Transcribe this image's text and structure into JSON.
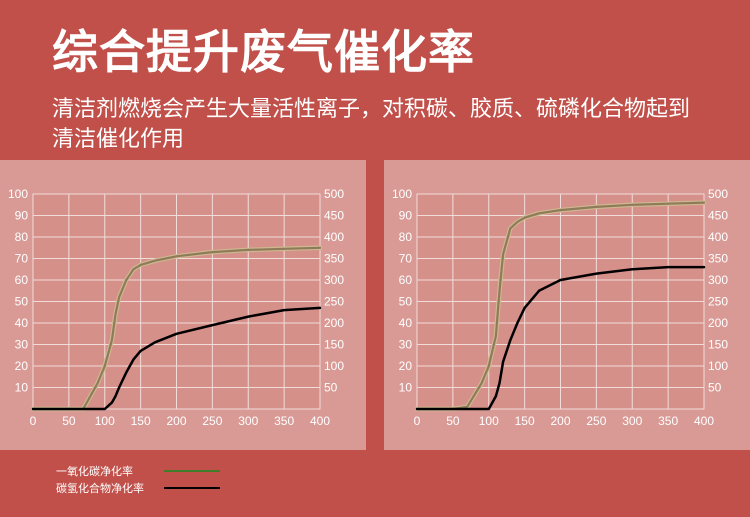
{
  "header": {
    "title": "综合提升废气催化率",
    "subtitle": "清洁剂燃烧会产生大量活性离子，对积碳、胶质、硫磷化合物起到清洁催化作用"
  },
  "colors": {
    "background": "#c1504a",
    "panel": "#d99a95",
    "co_line": "#8f7a5a",
    "hc_line": "#000000",
    "legend_green": "#3f7d2a"
  },
  "legend": [
    {
      "label": "一氧化碳净化率",
      "color": "#3f7d2a"
    },
    {
      "label": "碳氢化合物净化率",
      "color": "#000000"
    }
  ],
  "chart_data": [
    {
      "type": "line",
      "x": [
        0,
        50,
        70,
        90,
        100,
        110,
        115,
        120,
        130,
        140,
        150,
        170,
        200,
        250,
        300,
        350,
        400
      ],
      "xlim": [
        0,
        400
      ],
      "xticks": [
        0,
        50,
        100,
        150,
        200,
        250,
        300,
        350,
        400
      ],
      "ylim": [
        0,
        100
      ],
      "yticks_left": [
        10,
        20,
        30,
        40,
        50,
        60,
        70,
        80,
        90,
        100
      ],
      "ylim_right": [
        0,
        500
      ],
      "yticks_right": [
        50,
        100,
        150,
        200,
        250,
        300,
        350,
        400,
        450,
        500
      ],
      "grid": true,
      "series": [
        {
          "name": "一氧化碳净化率",
          "values": [
            0,
            0,
            0,
            12,
            20,
            32,
            44,
            52,
            60,
            65,
            67,
            69,
            71,
            73,
            74,
            74.5,
            75
          ]
        },
        {
          "name": "碳氢化合物净化率",
          "values": [
            0,
            0,
            0,
            0,
            0,
            3,
            6,
            10,
            17,
            23,
            27,
            31,
            35,
            39,
            43,
            46,
            47
          ]
        }
      ]
    },
    {
      "type": "line",
      "x": [
        0,
        50,
        70,
        90,
        100,
        110,
        115,
        120,
        130,
        140,
        150,
        170,
        200,
        250,
        300,
        350,
        400
      ],
      "xlim": [
        0,
        400
      ],
      "xticks": [
        0,
        50,
        100,
        150,
        200,
        250,
        300,
        350,
        400
      ],
      "ylim": [
        0,
        100
      ],
      "yticks_left": [
        10,
        20,
        30,
        40,
        50,
        60,
        70,
        80,
        90,
        100
      ],
      "ylim_right": [
        0,
        500
      ],
      "yticks_right": [
        50,
        100,
        150,
        200,
        250,
        300,
        350,
        400,
        450,
        500
      ],
      "grid": true,
      "series": [
        {
          "name": "一氧化碳净化率",
          "values": [
            0,
            0,
            1,
            12,
            20,
            34,
            55,
            72,
            84,
            87,
            89,
            91,
            92.5,
            94,
            95,
            95.5,
            96
          ]
        },
        {
          "name": "碳氢化合物净化率",
          "values": [
            0,
            0,
            0,
            0,
            0,
            6,
            12,
            22,
            32,
            40,
            47,
            55,
            60,
            63,
            65,
            66,
            66
          ]
        }
      ]
    }
  ]
}
